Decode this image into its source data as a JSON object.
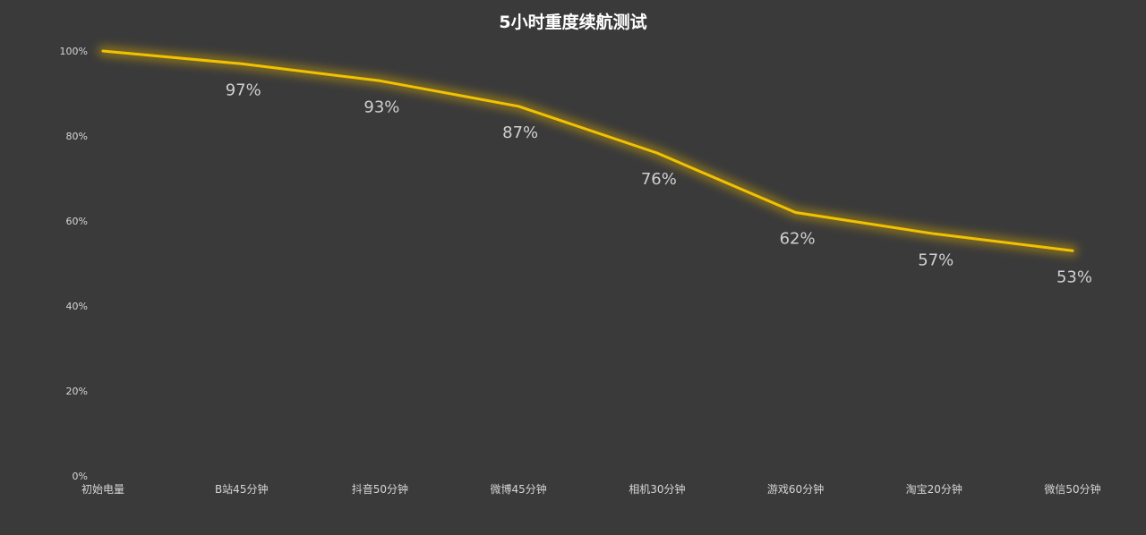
{
  "chart_data": {
    "type": "line",
    "title": "5小时重度续航测试",
    "xlabel": "",
    "ylabel": "",
    "categories": [
      "初始电量",
      "B站45分钟",
      "抖音50分钟",
      "微博45分钟",
      "相机30分钟",
      "游戏60分钟",
      "淘宝20分钟",
      "微信50分钟"
    ],
    "series": [
      {
        "values": [
          100,
          97,
          93,
          87,
          76,
          62,
          57,
          53
        ],
        "color": "#f2c200"
      }
    ],
    "data_labels": [
      "",
      "97%",
      "93%",
      "87%",
      "76%",
      "62%",
      "57%",
      "53%"
    ],
    "y_ticks": [
      0,
      20,
      40,
      60,
      80,
      100
    ],
    "y_tick_labels": [
      "0%",
      "20%",
      "40%",
      "60%",
      "80%",
      "100%"
    ],
    "ylim": [
      0,
      100
    ],
    "grid": false,
    "legend": "none",
    "background": "#3a3a3a",
    "line_color": "#f2c200",
    "glow_color": "#e0b000"
  }
}
